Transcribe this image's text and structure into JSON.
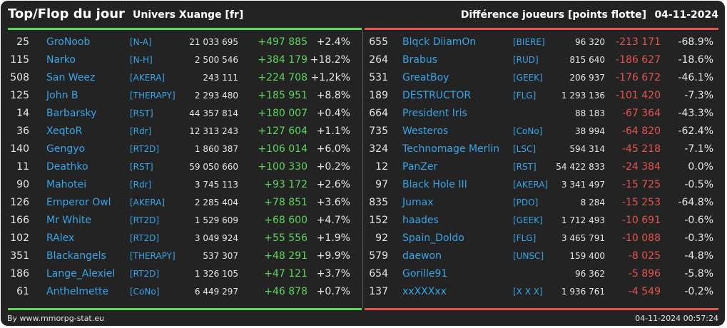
{
  "header": {
    "title": "Top/Flop du jour",
    "universe": "Univers Xuange [fr]",
    "subtitle": "Différence joueurs [points flotte]",
    "date": "04-11-2024"
  },
  "colors": {
    "background": "#232323",
    "gain": "#5cd65c",
    "loss": "#e4554f",
    "link": "#39a5e6",
    "text": "#e6e6e6"
  },
  "top": [
    {
      "rank": "25",
      "name": "GroNoob",
      "guild": "[N-A]",
      "points": "21 033 695",
      "delta": "+497 885",
      "pct": "+2.4%"
    },
    {
      "rank": "115",
      "name": "Narko",
      "guild": "[N-H]",
      "points": "2 500 546",
      "delta": "+384 179",
      "pct": "+18.2%"
    },
    {
      "rank": "508",
      "name": "San Weez",
      "guild": "[AKERA]",
      "points": "243 111",
      "delta": "+224 708",
      "pct": "+1,2k%"
    },
    {
      "rank": "125",
      "name": "John B",
      "guild": "[THERAPY]",
      "points": "2 293 480",
      "delta": "+185 951",
      "pct": "+8.8%"
    },
    {
      "rank": "14",
      "name": "Barbarsky",
      "guild": "[RST]",
      "points": "44 357 814",
      "delta": "+180 007",
      "pct": "+0.4%"
    },
    {
      "rank": "36",
      "name": "XeqtoR",
      "guild": "[Rdr]",
      "points": "12 313 243",
      "delta": "+127 604",
      "pct": "+1.1%"
    },
    {
      "rank": "140",
      "name": "Gengyo",
      "guild": "[RT2D]",
      "points": "1 860 387",
      "delta": "+106 014",
      "pct": "+6.0%"
    },
    {
      "rank": "11",
      "name": "Deathko",
      "guild": "[RST]",
      "points": "59 050 660",
      "delta": "+100 330",
      "pct": "+0.2%"
    },
    {
      "rank": "90",
      "name": "Mahotei",
      "guild": "[Rdr]",
      "points": "3 745 113",
      "delta": "+93 172",
      "pct": "+2.6%"
    },
    {
      "rank": "126",
      "name": "Emperor Owl",
      "guild": "[AKERA]",
      "points": "2 285 404",
      "delta": "+78 851",
      "pct": "+3.6%"
    },
    {
      "rank": "166",
      "name": "Mr White",
      "guild": "[RT2D]",
      "points": "1 529 609",
      "delta": "+68 600",
      "pct": "+4.7%"
    },
    {
      "rank": "102",
      "name": "RAlex",
      "guild": "[RT2D]",
      "points": "3 049 924",
      "delta": "+55 556",
      "pct": "+1.9%"
    },
    {
      "rank": "351",
      "name": "Blackangels",
      "guild": "[THERAPY]",
      "points": "537 307",
      "delta": "+48 291",
      "pct": "+9.9%"
    },
    {
      "rank": "186",
      "name": "Lange_Alexiel",
      "guild": "[RT2D]",
      "points": "1 326 105",
      "delta": "+47 121",
      "pct": "+3.7%"
    },
    {
      "rank": "61",
      "name": "Anthelmette",
      "guild": "[CoNo]",
      "points": "6 449 297",
      "delta": "+46 878",
      "pct": "+0.7%"
    }
  ],
  "flop": [
    {
      "rank": "655",
      "name": "Blqck DiiamOn",
      "guild": "[BIERE]",
      "points": "96 320",
      "delta": "-213 171",
      "pct": "-68.9%"
    },
    {
      "rank": "264",
      "name": "Brabus",
      "guild": "[RUD]",
      "points": "815 640",
      "delta": "-186 627",
      "pct": "-18.6%"
    },
    {
      "rank": "531",
      "name": "GreatBoy",
      "guild": "[GEEK]",
      "points": "206 937",
      "delta": "-176 672",
      "pct": "-46.1%"
    },
    {
      "rank": "189",
      "name": "DESTRUCTOR",
      "guild": "[FLG]",
      "points": "1 293 136",
      "delta": "-101 420",
      "pct": "-7.3%"
    },
    {
      "rank": "664",
      "name": "President Iris",
      "guild": "",
      "points": "88 183",
      "delta": "-67 364",
      "pct": "-43.3%"
    },
    {
      "rank": "735",
      "name": "Westeros",
      "guild": "[CoNo]",
      "points": "38 994",
      "delta": "-64 820",
      "pct": "-62.4%"
    },
    {
      "rank": "324",
      "name": "Technomage Merlin",
      "guild": "[LSC]",
      "points": "594 314",
      "delta": "-45 218",
      "pct": "-7.1%"
    },
    {
      "rank": "12",
      "name": "PanZer",
      "guild": "[RST]",
      "points": "54 422 833",
      "delta": "-24 384",
      "pct": "0.0%"
    },
    {
      "rank": "97",
      "name": "Black Hole III",
      "guild": "[AKERA]",
      "points": "3 341 497",
      "delta": "-15 725",
      "pct": "-0.5%"
    },
    {
      "rank": "835",
      "name": "Jumax",
      "guild": "[PDO]",
      "points": "8 284",
      "delta": "-15 253",
      "pct": "-64.8%"
    },
    {
      "rank": "152",
      "name": "haades",
      "guild": "[GEEK]",
      "points": "1 712 493",
      "delta": "-10 691",
      "pct": "-0.6%"
    },
    {
      "rank": "92",
      "name": "Spain_Doldo",
      "guild": "[FLG]",
      "points": "3 465 791",
      "delta": "-10 088",
      "pct": "-0.3%"
    },
    {
      "rank": "579",
      "name": "daewon",
      "guild": "[UNSC]",
      "points": "159 400",
      "delta": "-8 025",
      "pct": "-4.8%"
    },
    {
      "rank": "654",
      "name": "Gorille91",
      "guild": "",
      "points": "96 362",
      "delta": "-5 896",
      "pct": "-5.8%"
    },
    {
      "rank": "137",
      "name": "xxXXXxx",
      "guild": "[X X X]",
      "points": "1 936 761",
      "delta": "-4 549",
      "pct": "-0.2%"
    }
  ],
  "footer": {
    "credit": "By www.mmorpg-stat.eu",
    "timestamp": "04-11-2024 00:57:24"
  }
}
